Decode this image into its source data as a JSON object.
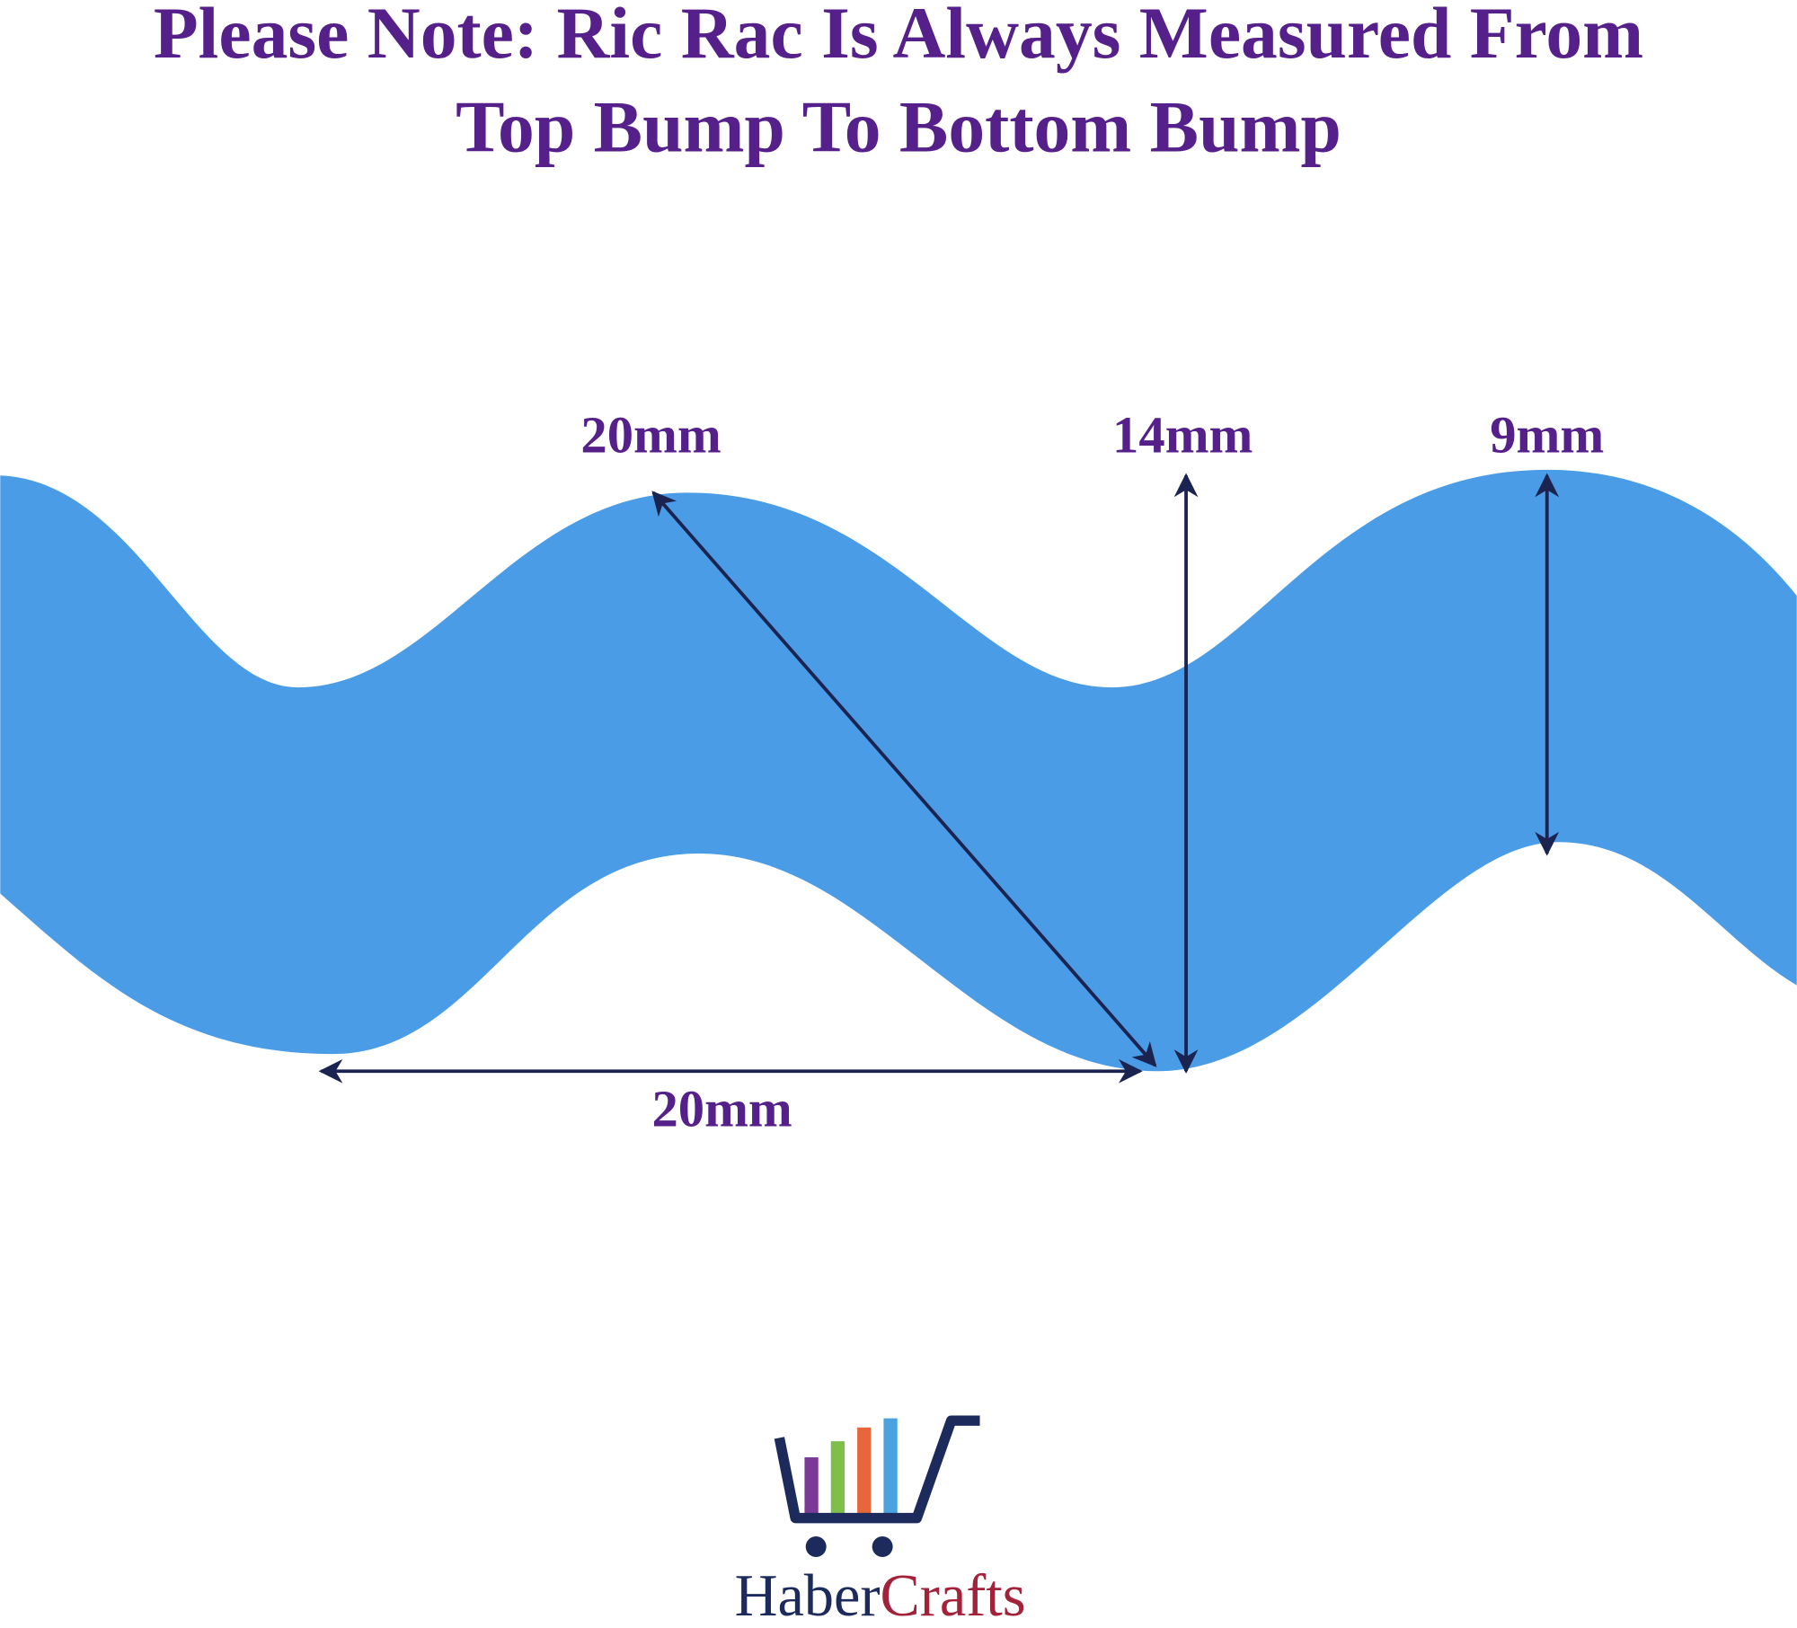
{
  "header": {
    "title_lines": [
      "Please Note: Ric Rac Is Always Measured From",
      "Top Bump To Bottom Bump"
    ]
  },
  "measurements": [
    "20mm",
    "14mm",
    "9mm",
    "20mm"
  ],
  "logo": {
    "brand_first": "Haber",
    "brand_second": "Crafts"
  }
}
